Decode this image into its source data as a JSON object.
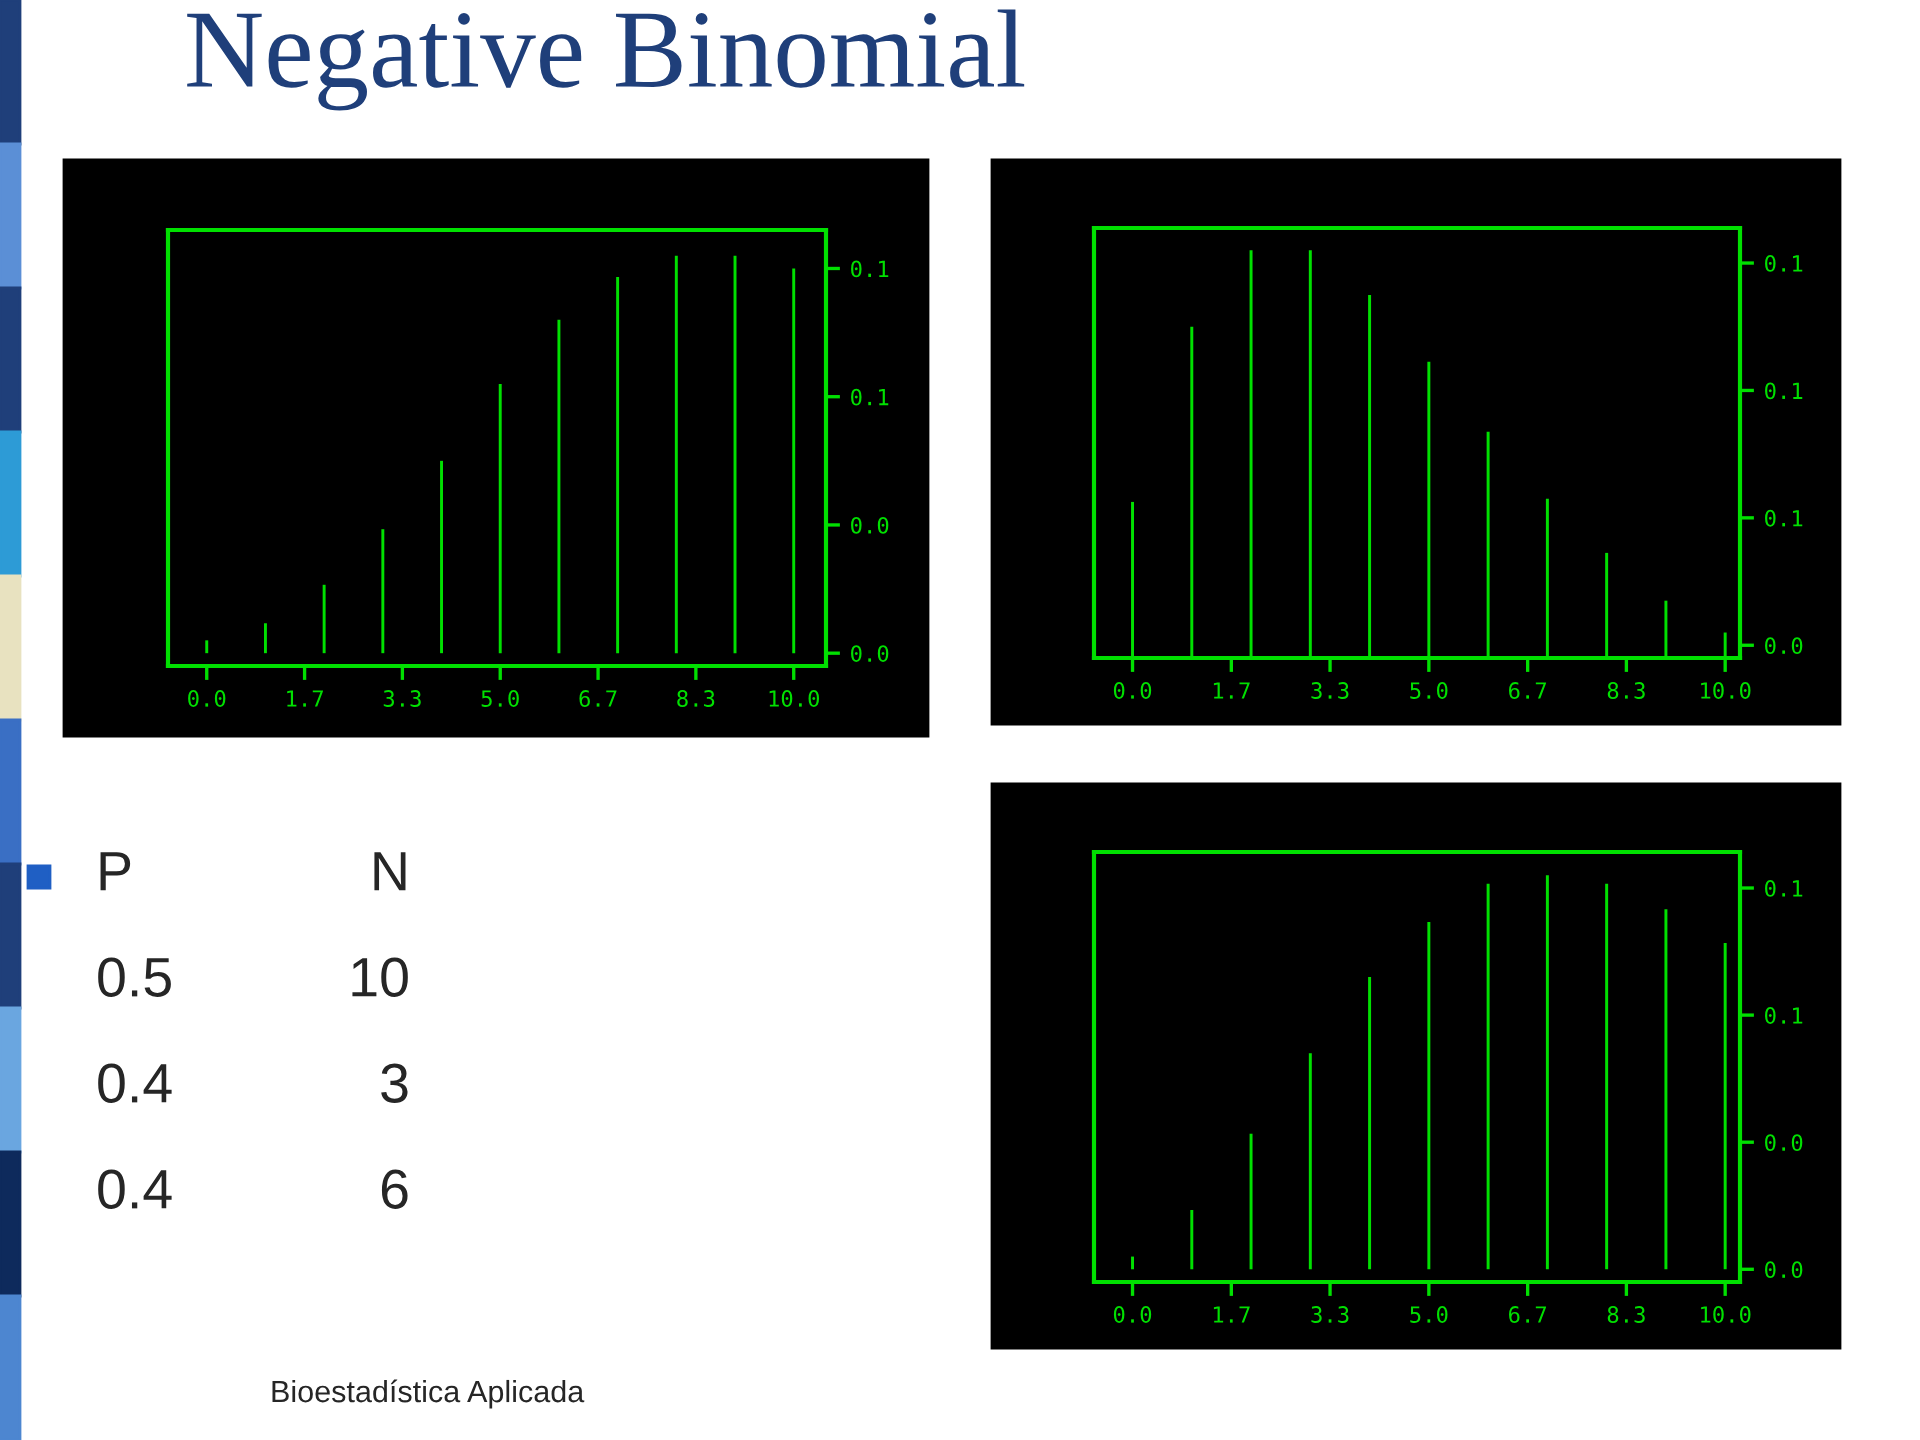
{
  "chart_data": [
    {
      "type": "bar",
      "title": "Negative Binomial",
      "annotations": [
        "P",
        "N",
        "0.5",
        "10",
        "0.4",
        "3",
        "0.4",
        "6",
        "Bioestadística Aplicada"
      ],
      "x": [
        0,
        1,
        2,
        3,
        4,
        5,
        6,
        7,
        8,
        9,
        10
      ],
      "values": [
        0.003,
        0.007,
        0.016,
        0.029,
        0.045,
        0.063,
        0.078,
        0.088,
        0.093,
        0.093,
        0.09
      ],
      "color": "#00e000",
      "xlim": [
        -0.66,
        10.55
      ],
      "ylim": [
        -0.003,
        0.099
      ],
      "xticks": [
        {
          "value": 0,
          "label": "0.0"
        },
        {
          "value": 1.667,
          "label": "1.7"
        },
        {
          "value": 3.333,
          "label": "3.3"
        },
        {
          "value": 5,
          "label": "5.0"
        },
        {
          "value": 6.667,
          "label": "6.7"
        },
        {
          "value": 8.333,
          "label": "8.3"
        },
        {
          "value": 10,
          "label": "10.0"
        }
      ],
      "yticks": [
        {
          "value": 0,
          "label": "0.0"
        },
        {
          "value": 0.03,
          "label": "0.0"
        },
        {
          "value": 0.06,
          "label": "0.1"
        },
        {
          "value": 0.09,
          "label": "0.1"
        }
      ]
    },
    {
      "type": "bar",
      "x": [
        0,
        1,
        2,
        3,
        4,
        5,
        6,
        7,
        8,
        9,
        10
      ],
      "values": [
        0.065,
        0.12,
        0.144,
        0.144,
        0.13,
        0.109,
        0.087,
        0.066,
        0.049,
        0.034,
        0.024
      ],
      "color": "#00e000",
      "xlim": [
        -0.65,
        10.25
      ],
      "ylim": [
        0.016,
        0.151
      ],
      "xticks": [
        {
          "value": 0,
          "label": "0.0"
        },
        {
          "value": 1.667,
          "label": "1.7"
        },
        {
          "value": 3.333,
          "label": "3.3"
        },
        {
          "value": 5,
          "label": "5.0"
        },
        {
          "value": 6.667,
          "label": "6.7"
        },
        {
          "value": 8.333,
          "label": "8.3"
        },
        {
          "value": 10,
          "label": "10.0"
        }
      ],
      "yticks": [
        {
          "value": 0.02,
          "label": "0.0"
        },
        {
          "value": 0.06,
          "label": "0.1"
        },
        {
          "value": 0.1,
          "label": "0.1"
        },
        {
          "value": 0.14,
          "label": "0.1"
        }
      ]
    },
    {
      "type": "bar",
      "x": [
        0,
        1,
        2,
        3,
        4,
        5,
        6,
        7,
        8,
        9,
        10
      ],
      "values": [
        0.003,
        0.014,
        0.032,
        0.051,
        0.069,
        0.082,
        0.091,
        0.093,
        0.091,
        0.085,
        0.077
      ],
      "color": "#00e000",
      "xlim": [
        -0.65,
        10.25
      ],
      "ylim": [
        -0.003,
        0.0985
      ],
      "xticks": [
        {
          "value": 0,
          "label": "0.0"
        },
        {
          "value": 1.667,
          "label": "1.7"
        },
        {
          "value": 3.333,
          "label": "3.3"
        },
        {
          "value": 5,
          "label": "5.0"
        },
        {
          "value": 6.667,
          "label": "6.7"
        },
        {
          "value": 8.333,
          "label": "8.3"
        },
        {
          "value": 10,
          "label": "10.0"
        }
      ],
      "yticks": [
        {
          "value": 0,
          "label": "0.0"
        },
        {
          "value": 0.03,
          "label": "0.0"
        },
        {
          "value": 0.06,
          "label": "0.1"
        },
        {
          "value": 0.09,
          "label": "0.1"
        }
      ]
    }
  ]
}
